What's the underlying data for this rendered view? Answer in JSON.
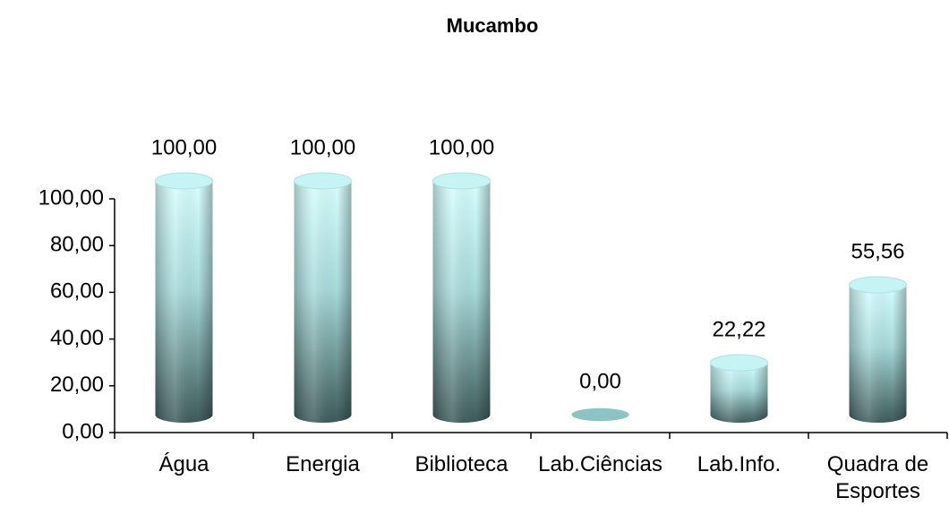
{
  "chart_data": {
    "type": "bar",
    "title": "Mucambo",
    "categories": [
      "Água",
      "Energia",
      "Biblioteca",
      "Lab.Ciências",
      "Lab.Info.",
      "Quadra de Esportes"
    ],
    "values": [
      100,
      100,
      100,
      0,
      22.22,
      55.56
    ],
    "value_labels": [
      "100,00",
      "100,00",
      "100,00",
      "0,00",
      "22,22",
      "55,56"
    ],
    "color": "#a8e0e0",
    "ylim": [
      0,
      100
    ],
    "yticks": [
      {
        "value": 0,
        "label": "0,00"
      },
      {
        "value": 20,
        "label": "20,00"
      },
      {
        "value": 40,
        "label": "40,00"
      },
      {
        "value": 60,
        "label": "60,00"
      },
      {
        "value": 80,
        "label": "80,00"
      },
      {
        "value": 100,
        "label": "100,00"
      }
    ]
  }
}
